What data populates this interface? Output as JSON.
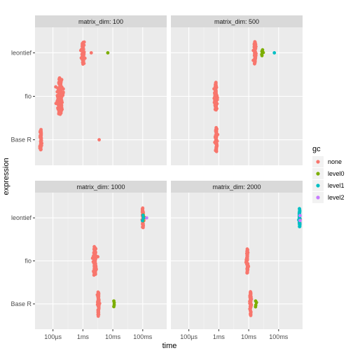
{
  "chart_data": {
    "type": "scatter",
    "facet_var": "matrix_dim",
    "xlabel": "time",
    "ylabel": "expression",
    "x_scale": "log10",
    "x_ticks": [
      "100µs",
      "1ms",
      "10ms",
      "100ms"
    ],
    "categories": [
      "Base R",
      "fio",
      "leontief"
    ],
    "legend": {
      "title": "gc",
      "position": "right",
      "entries": [
        "none",
        "level0",
        "level1",
        "level2"
      ]
    },
    "colors": {
      "none": "#F8766D",
      "level0": "#7CAE00",
      "level1": "#00BFC4",
      "level2": "#C77CFF"
    },
    "panels": [
      {
        "strip": "matrix_dim: 100",
        "groups": [
          {
            "expression": "leontief",
            "gc": "none",
            "center_s": 0.001,
            "spread": 0.08,
            "count": 45
          },
          {
            "expression": "leontief",
            "gc": "none",
            "center_s": 0.0019,
            "spread": 0.0,
            "count": 1
          },
          {
            "expression": "leontief",
            "gc": "level0",
            "center_s": 0.0068,
            "spread": 0.0,
            "count": 1
          },
          {
            "expression": "fio",
            "gc": "none",
            "center_s": 0.00017,
            "spread": 0.12,
            "count": 130
          },
          {
            "expression": "Base R",
            "gc": "none",
            "center_s": 4e-05,
            "spread": 0.05,
            "count": 40
          },
          {
            "expression": "Base R",
            "gc": "none",
            "center_s": 0.0035,
            "spread": 0.0,
            "count": 1
          }
        ]
      },
      {
        "strip": "matrix_dim: 500",
        "groups": [
          {
            "expression": "leontief",
            "gc": "none",
            "center_s": 0.016,
            "spread": 0.06,
            "count": 45
          },
          {
            "expression": "leontief",
            "gc": "level0",
            "center_s": 0.028,
            "spread": 0.06,
            "count": 5
          },
          {
            "expression": "leontief",
            "gc": "level1",
            "center_s": 0.072,
            "spread": 0.0,
            "count": 1
          },
          {
            "expression": "fio",
            "gc": "none",
            "center_s": 0.0008,
            "spread": 0.06,
            "count": 60
          },
          {
            "expression": "Base R",
            "gc": "none",
            "center_s": 0.00082,
            "spread": 0.05,
            "count": 50
          }
        ]
      },
      {
        "strip": "matrix_dim: 1000",
        "groups": [
          {
            "expression": "leontief",
            "gc": "none",
            "center_s": 0.1,
            "spread": 0.04,
            "count": 40
          },
          {
            "expression": "leontief",
            "gc": "level0",
            "center_s": 0.105,
            "spread": 0.04,
            "count": 3
          },
          {
            "expression": "leontief",
            "gc": "level1",
            "center_s": 0.1,
            "spread": 0.03,
            "count": 3
          },
          {
            "expression": "leontief",
            "gc": "level2",
            "center_s": 0.135,
            "spread": 0.0,
            "count": 1
          },
          {
            "expression": "fio",
            "gc": "none",
            "center_s": 0.0025,
            "spread": 0.08,
            "count": 60
          },
          {
            "expression": "Base R",
            "gc": "none",
            "center_s": 0.0033,
            "spread": 0.04,
            "count": 50
          },
          {
            "expression": "Base R",
            "gc": "level0",
            "center_s": 0.011,
            "spread": 0.06,
            "count": 4
          }
        ]
      },
      {
        "strip": "matrix_dim: 2000",
        "groups": [
          {
            "expression": "leontief",
            "gc": "none",
            "center_s": 0.5,
            "spread": 0.02,
            "count": 15
          },
          {
            "expression": "leontief",
            "gc": "level1",
            "center_s": 0.5,
            "spread": 0.02,
            "count": 35
          },
          {
            "expression": "leontief",
            "gc": "level2",
            "center_s": 0.52,
            "spread": 0.0,
            "count": 2
          },
          {
            "expression": "fio",
            "gc": "none",
            "center_s": 0.009,
            "spread": 0.04,
            "count": 50
          },
          {
            "expression": "Base R",
            "gc": "none",
            "center_s": 0.0115,
            "spread": 0.04,
            "count": 50
          },
          {
            "expression": "Base R",
            "gc": "level0",
            "center_s": 0.017,
            "spread": 0.04,
            "count": 4
          }
        ]
      }
    ]
  }
}
